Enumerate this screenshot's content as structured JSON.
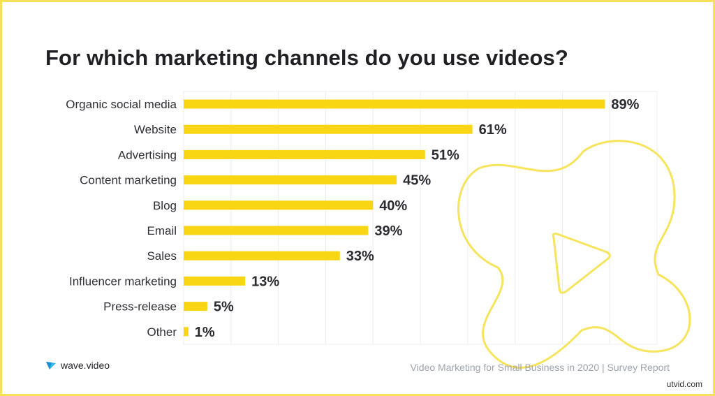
{
  "header": {
    "title": "For which marketing channels do you use videos?"
  },
  "footer": {
    "logo_text": "wave.video",
    "source": "Video Marketing for Small Business in 2020 | Survey Report",
    "watermark": "utvid.com"
  },
  "colors": {
    "bar": "#f8d613",
    "accent_outline": "#f5e15a",
    "grid": "#ececec"
  },
  "icons": {
    "logo": "wave-logo-icon",
    "decor": "play-flower-outline-icon"
  },
  "chart_data": {
    "type": "bar",
    "orientation": "horizontal",
    "title": "For which marketing channels do you use videos?",
    "categories": [
      "Organic social media",
      "Website",
      "Advertising",
      "Content marketing",
      "Blog",
      "Email",
      "Sales",
      "Influencer marketing",
      "Press-release",
      "Other"
    ],
    "values": [
      89,
      61,
      51,
      45,
      40,
      39,
      33,
      13,
      5,
      1
    ],
    "value_labels": [
      "89%",
      "61%",
      "51%",
      "45%",
      "40%",
      "39%",
      "33%",
      "13%",
      "5%",
      "1%"
    ],
    "unit": "%",
    "xlim": [
      0,
      100
    ],
    "grid": true,
    "legend": "none"
  }
}
